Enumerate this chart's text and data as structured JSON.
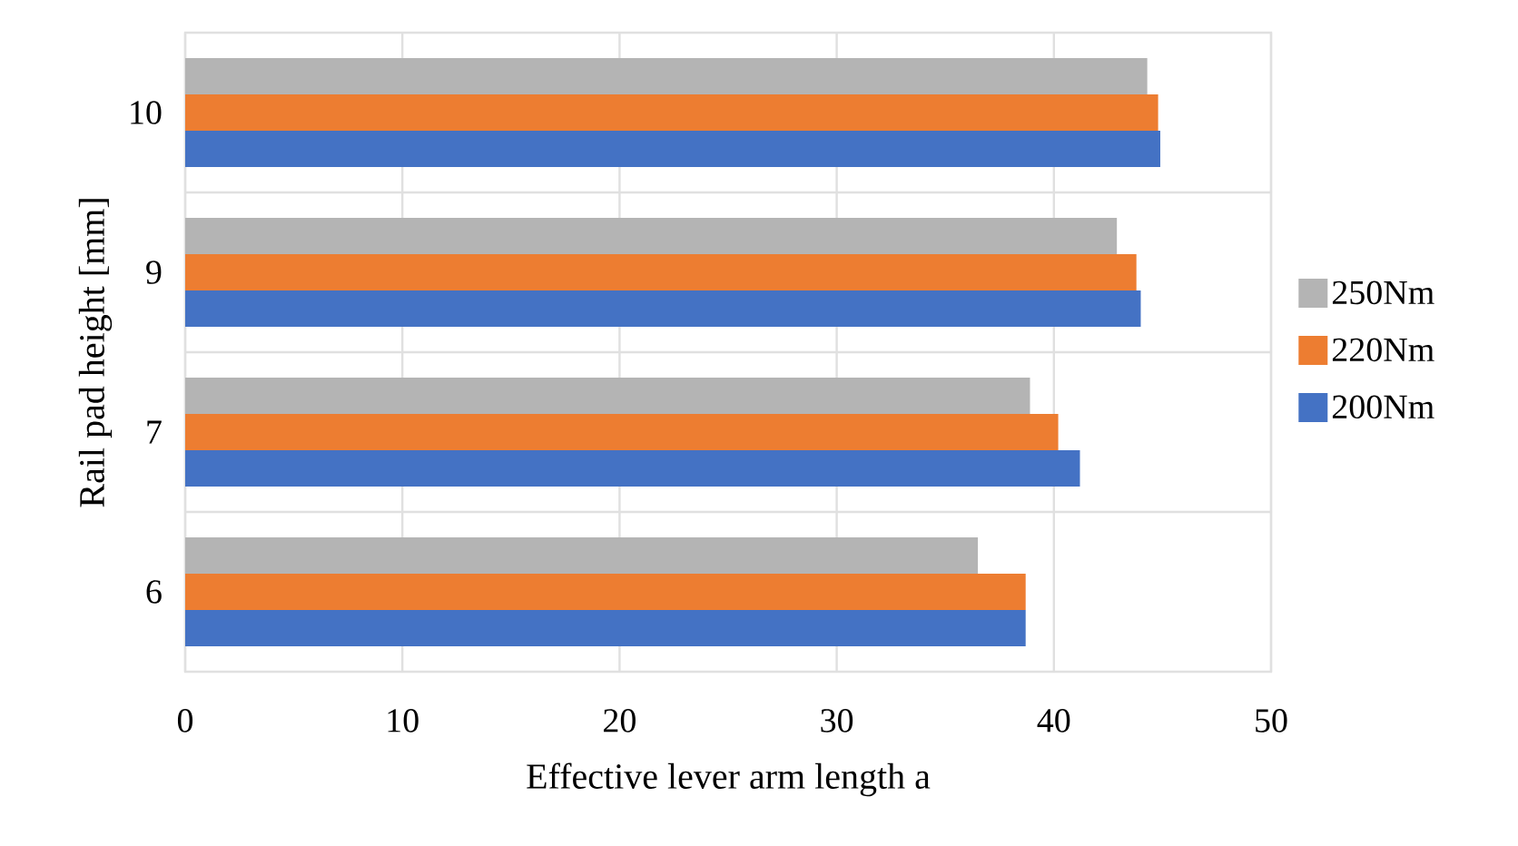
{
  "chart_data": {
    "type": "bar",
    "orientation": "horizontal",
    "xlabel": "Effective lever arm length a",
    "ylabel": "Rail pad height [mm]",
    "categories": [
      "10",
      "9",
      "7",
      "6"
    ],
    "series": [
      {
        "name": "200Nm",
        "color": "#4472c4",
        "values": [
          44.9,
          44.0,
          41.2,
          38.7
        ]
      },
      {
        "name": "220Nm",
        "color": "#ed7d31",
        "values": [
          44.8,
          43.8,
          40.2,
          38.7
        ]
      },
      {
        "name": "250Nm",
        "color": "#b4b4b4",
        "values": [
          44.3,
          42.9,
          38.9,
          36.5
        ]
      }
    ],
    "xlim": [
      0,
      50
    ],
    "xticks": [
      0,
      10,
      20,
      30,
      40,
      50
    ],
    "grid": true,
    "legend": "right"
  }
}
